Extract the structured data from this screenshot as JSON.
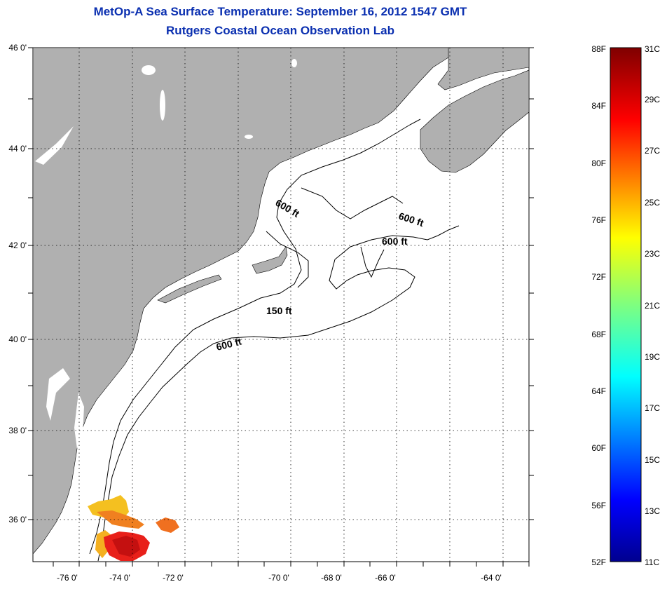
{
  "title": {
    "line1": "MetOp-A Sea Surface Temperature:  September 16, 2012 1547 GMT",
    "line2": "Rutgers Coastal Ocean Observation Lab"
  },
  "axes": {
    "lat_labels": [
      "46 0'",
      "44 0'",
      "42 0'",
      "40 0'",
      "38 0'",
      "36 0'"
    ],
    "lon_labels": [
      "-76 0'",
      "-74 0'",
      "-72 0'",
      "-70 0'",
      "-68 0'",
      "-66 0'",
      "-64 0'"
    ]
  },
  "contour_labels": [
    "600 ft",
    "600 ft",
    "600 ft",
    "150 ft",
    "600 ft"
  ],
  "colorbar": {
    "fahrenheit": [
      "88F",
      "84F",
      "80F",
      "76F",
      "72F",
      "68F",
      "64F",
      "60F",
      "56F",
      "52F"
    ],
    "celsius": [
      "31C",
      "29C",
      "27C",
      "25C",
      "23C",
      "21C",
      "19C",
      "17C",
      "15C",
      "13C",
      "11C"
    ]
  },
  "colors": {
    "title": "#0a2fb0",
    "land": "#b0b0b0",
    "ocean": "#ffffff",
    "sst_warm": "#e8201a",
    "sst_hot": "#c41010",
    "sst_orange": "#f08020",
    "sst_yellow": "#f4c020"
  }
}
